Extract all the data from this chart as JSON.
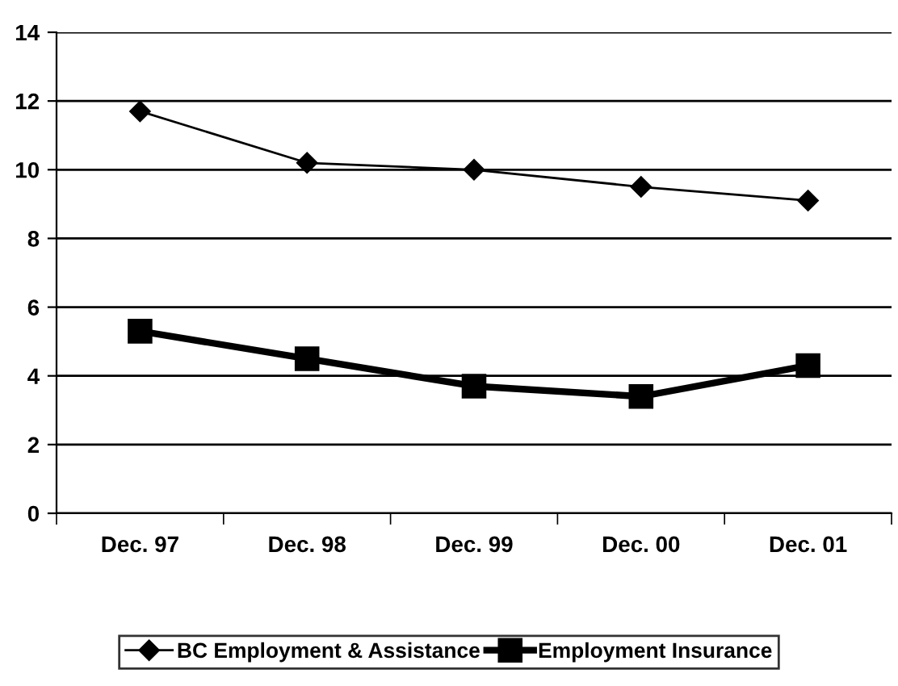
{
  "chart_data": {
    "type": "line",
    "categories": [
      "Dec. 97",
      "Dec. 98",
      "Dec. 99",
      "Dec. 00",
      "Dec. 01"
    ],
    "series": [
      {
        "name": "BC Employment & Assistance",
        "color": "#000000",
        "values": [
          11.7,
          10.2,
          10.0,
          9.5,
          9.1
        ],
        "marker": "diamond"
      },
      {
        "name": "Employment Insurance",
        "color": "#000000",
        "values": [
          5.3,
          4.5,
          3.7,
          3.4,
          4.3
        ],
        "marker": "square"
      }
    ],
    "ylim": [
      0,
      14
    ],
    "yticks": [
      0,
      2,
      4,
      6,
      8,
      10,
      12,
      14
    ],
    "grid": "y",
    "legend": "bottom"
  }
}
